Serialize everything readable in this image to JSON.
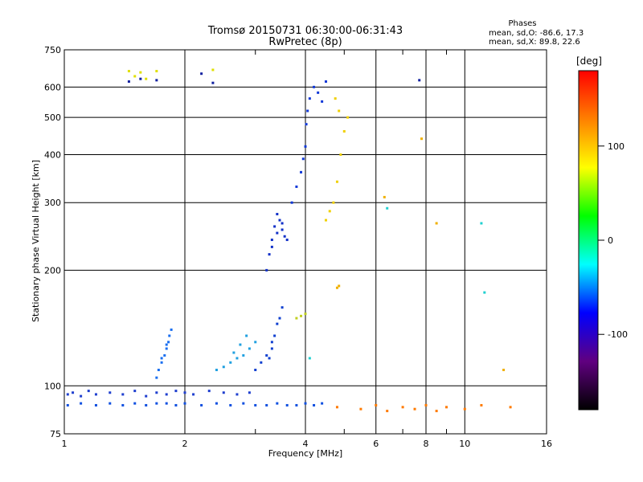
{
  "chart_data": {
    "type": "scatter",
    "title": "Tromsø 20150731 06:30:00-06:31:43",
    "subtitle": "RwPretec (8p)",
    "xlabel": "Frequency [MHz]",
    "ylabel": "Stationary phase Virtual Height [km]",
    "x_scale": "log",
    "y_scale": "log",
    "xlim": [
      1,
      16
    ],
    "ylim": [
      75,
      750
    ],
    "x_ticks": [
      1,
      2,
      4,
      6,
      8,
      10,
      16
    ],
    "y_ticks": [
      75,
      100,
      200,
      300,
      400,
      500,
      600,
      750
    ],
    "grid": true,
    "phase_stats": {
      "title": "Phases",
      "line_o": "mean, sd,O: -86.6, 17.3",
      "line_x": "mean, sd,X:  89.8, 22.6"
    },
    "colorbar": {
      "label": "[deg]",
      "range": [
        -180,
        180
      ],
      "ticks": [
        "100",
        "0",
        "-100"
      ],
      "colors": [
        "#ff0000",
        "#ff8000",
        "#ffff00",
        "#00ff00",
        "#00ffff",
        "#0000ff",
        "#600080",
        "#000000"
      ]
    },
    "series": [
      {
        "color": "#1f3fcf",
        "x": [
          1.02,
          1.05,
          1.1,
          1.15,
          1.2,
          1.3,
          1.4,
          1.5,
          1.6,
          1.7,
          1.8,
          1.9,
          2.0,
          2.1,
          2.3,
          2.5,
          2.7,
          2.9
        ],
        "y": [
          95,
          96,
          94,
          97,
          95,
          96,
          95,
          97,
          94,
          96,
          95,
          97,
          96,
          95,
          97,
          96,
          95,
          96
        ]
      },
      {
        "color": "#1050e0",
        "x": [
          1.02,
          1.1,
          1.2,
          1.3,
          1.4,
          1.5,
          1.6,
          1.7,
          1.8,
          1.9,
          2.0,
          2.2,
          2.4,
          2.6,
          2.8,
          3.0,
          3.2,
          3.4,
          3.6,
          3.8,
          4.0,
          4.2,
          4.4
        ],
        "y": [
          89,
          90,
          89,
          90,
          89,
          90,
          89,
          90,
          90,
          89,
          90,
          89,
          90,
          89,
          90,
          89,
          89,
          90,
          89,
          89,
          90,
          89,
          90
        ]
      },
      {
        "color": "#1a6ff0",
        "x": [
          1.7,
          1.72,
          1.75,
          1.78,
          1.8,
          1.82,
          1.85,
          1.75,
          1.8,
          1.83
        ],
        "y": [
          105,
          110,
          115,
          120,
          125,
          130,
          140,
          118,
          128,
          135
        ]
      },
      {
        "color": "#20a0e0",
        "x": [
          2.4,
          2.5,
          2.6,
          2.7,
          2.8,
          2.9,
          3.0,
          2.65,
          2.75,
          2.85
        ],
        "y": [
          110,
          112,
          115,
          118,
          120,
          125,
          130,
          122,
          128,
          135
        ]
      },
      {
        "color": "#1040d0",
        "x": [
          3.0,
          3.1,
          3.2,
          3.3,
          3.35,
          3.4,
          3.45,
          3.5,
          3.3,
          3.25
        ],
        "y": [
          110,
          115,
          120,
          125,
          135,
          145,
          150,
          160,
          130,
          118
        ]
      },
      {
        "color": "#1030c8",
        "x": [
          3.2,
          3.25,
          3.3,
          3.35,
          3.4,
          3.45,
          3.5,
          3.55,
          3.6,
          3.3,
          3.4,
          3.5
        ],
        "y": [
          200,
          220,
          240,
          260,
          250,
          270,
          255,
          245,
          240,
          230,
          280,
          265
        ]
      },
      {
        "color": "#1038d8",
        "x": [
          3.7,
          3.8,
          3.9,
          3.95,
          4.0,
          4.02,
          4.05,
          4.1,
          4.2,
          4.3,
          4.4,
          4.5
        ],
        "y": [
          300,
          330,
          360,
          390,
          420,
          480,
          520,
          560,
          600,
          580,
          550,
          620
        ]
      },
      {
        "color": "#c0d020",
        "x": [
          3.8,
          3.9,
          4.0
        ],
        "y": [
          150,
          152,
          154
        ]
      },
      {
        "color": "#f0d000",
        "x": [
          4.5,
          4.6,
          4.7,
          4.8,
          4.9,
          5.0,
          5.1,
          4.75,
          4.85
        ],
        "y": [
          270,
          285,
          300,
          340,
          400,
          460,
          500,
          560,
          520
        ]
      },
      {
        "color": "#f0b000",
        "x": [
          4.8,
          4.85,
          6.3,
          7.8,
          8.5,
          12.5
        ],
        "y": [
          180,
          182,
          310,
          440,
          265,
          110
        ]
      },
      {
        "color": "#ff7a00",
        "x": [
          4.8,
          5.5,
          6.0,
          6.4,
          7.0,
          7.5,
          8.0,
          8.5,
          9.0,
          10.0,
          11.0,
          13.0
        ],
        "y": [
          88,
          87,
          89,
          86,
          88,
          87,
          89,
          86,
          88,
          87,
          89,
          88
        ]
      },
      {
        "color": "#20d0d0",
        "x": [
          4.1,
          6.4,
          11.0,
          11.2
        ],
        "y": [
          118,
          290,
          265,
          175
        ]
      },
      {
        "color": "#e0e000",
        "x": [
          1.45,
          1.5,
          1.55,
          1.6,
          1.7,
          2.35
        ],
        "y": [
          660,
          640,
          655,
          630,
          660,
          665
        ]
      },
      {
        "color": "#1020a0",
        "x": [
          1.45,
          1.55,
          1.7,
          2.2,
          2.35,
          7.7
        ],
        "y": [
          620,
          630,
          625,
          650,
          615,
          625
        ]
      }
    ]
  }
}
